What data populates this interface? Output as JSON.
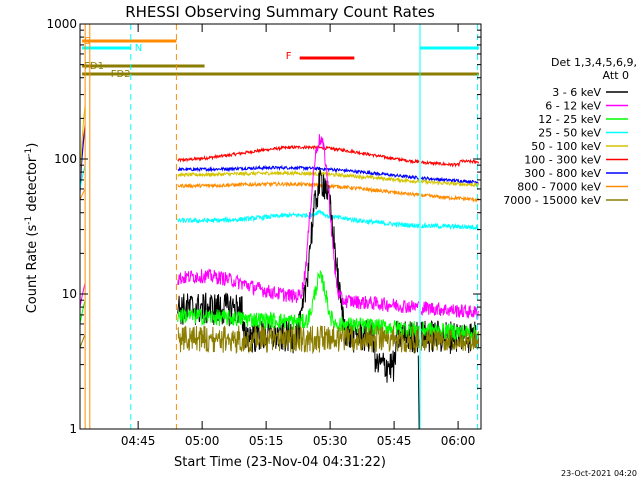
{
  "chart_data": {
    "type": "line",
    "title": "RHESSI Observing Summary Count Rates",
    "xlabel": "Start Time (23-Nov-04 04:31:22)",
    "ylabel_main": "Count Rate (s",
    "ylabel_sup": "-1",
    "ylabel_tail": " detector",
    "ylabel_end": ")",
    "y_scale": "log",
    "ylim": [
      1,
      1000
    ],
    "y_ticks": [
      {
        "value": 1,
        "label": "1"
      },
      {
        "value": 10,
        "label": "10"
      },
      {
        "value": 100,
        "label": "100"
      },
      {
        "value": 1000,
        "label": "1000"
      }
    ],
    "xlim_minutes": [
      0,
      94
    ],
    "x_ticks": [
      {
        "minutes": 13.63,
        "label": "04:45"
      },
      {
        "minutes": 28.63,
        "label": "05:00"
      },
      {
        "minutes": 43.63,
        "label": "05:15"
      },
      {
        "minutes": 58.63,
        "label": "05:30"
      },
      {
        "minutes": 73.63,
        "label": "05:45"
      },
      {
        "minutes": 88.63,
        "label": "06:00"
      }
    ],
    "legend_header": [
      "Det 1,3,4,5,6,9,",
      "Att 0"
    ],
    "legend_position": "right",
    "series": [
      {
        "name": "3 - 6 keV",
        "color": "#000000"
      },
      {
        "name": "6 - 12 keV",
        "color": "#ff00ff"
      },
      {
        "name": "12 - 25 keV",
        "color": "#00ff00"
      },
      {
        "name": "25 - 50 keV",
        "color": "#00ffff"
      },
      {
        "name": "50 - 100 keV",
        "color": "#d4c400"
      },
      {
        "name": "100 - 300 keV",
        "color": "#ff0000"
      },
      {
        "name": "300 - 800 keV",
        "color": "#0000ff"
      },
      {
        "name": "800 - 7000 keV",
        "color": "#ff8c00"
      },
      {
        "name": "7000 - 15000 keV",
        "color": "#8b7d00"
      }
    ],
    "state_bars": [
      {
        "label": "S",
        "color": "#ff8c00",
        "start_min": 0.5,
        "end_min": 22.6
      },
      {
        "label": "N",
        "color": "#00ffff",
        "start_min": 0.5,
        "end_min": 11.9
      },
      {
        "label": "N",
        "color": "#00ffff",
        "start_min": 79.7,
        "end_min": 93.5
      },
      {
        "label": "F",
        "color": "#ff0000",
        "start_min": 51.5,
        "end_min": 64.3
      },
      {
        "label": "FD1",
        "color": "#8b7d00",
        "start_min": 0.5,
        "end_min": 29.2
      },
      {
        "label": "FD2",
        "color": "#8b7d00",
        "start_min": 0.5,
        "end_min": 93.5
      }
    ],
    "footer_date": "23-Oct-2021 04:20"
  }
}
